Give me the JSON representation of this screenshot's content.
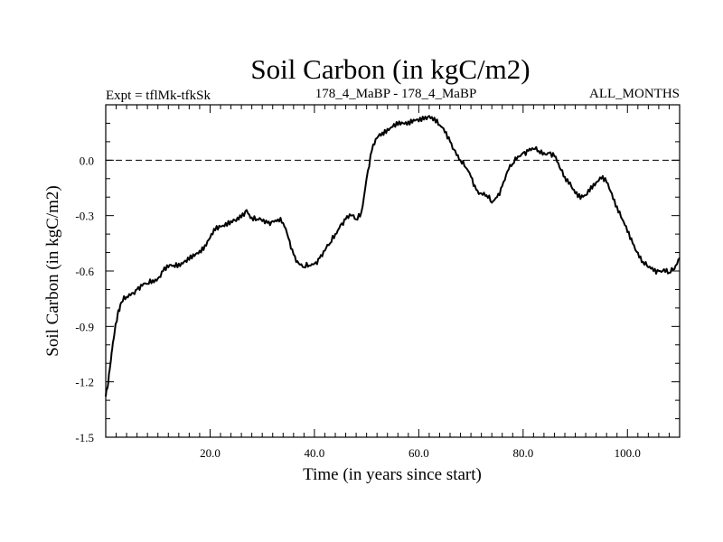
{
  "chart_data": {
    "type": "line",
    "title": "Soil Carbon (in kgC/m2)",
    "subtitle_left": "Expt = tflMk-tfkSk",
    "subtitle_center": "178_4_MaBP - 178_4_MaBP",
    "subtitle_right": "ALL_MONTHS",
    "xlabel": "Time (in years since start)",
    "ylabel": "Soil Carbon (in kgC/m2)",
    "xlim": [
      0,
      110
    ],
    "ylim": [
      -1.5,
      0.3
    ],
    "x_ticks": [
      20,
      40,
      60,
      80,
      100
    ],
    "x_tick_labels": [
      "20.0",
      "40.0",
      "60.0",
      "80.0",
      "100.0"
    ],
    "y_ticks": [
      -1.5,
      -1.2,
      -0.9,
      -0.6,
      -0.3,
      0.0
    ],
    "y_tick_labels": [
      "-1.5",
      "-1.2",
      "-0.9",
      "-0.6",
      "-0.3",
      "0.0"
    ],
    "reference_line": {
      "y": 0.0,
      "style": "dashed"
    },
    "series": [
      {
        "name": "Soil Carbon",
        "color": "#000000",
        "x": [
          0,
          0.5,
          1,
          1.5,
          2,
          2.5,
          3,
          4,
          5,
          6,
          7,
          8,
          9,
          10,
          11,
          12,
          13,
          14,
          15,
          16,
          17,
          18,
          19,
          20,
          21,
          22,
          23,
          24,
          25,
          26,
          27,
          28,
          29,
          30,
          31,
          32,
          33,
          34,
          35,
          36,
          37,
          38,
          39,
          40,
          41,
          42,
          43,
          44,
          45,
          46,
          47,
          48,
          49,
          50,
          51,
          52,
          53,
          54,
          55,
          56,
          57,
          58,
          59,
          60,
          61,
          62,
          63,
          64,
          65,
          66,
          67,
          68,
          69,
          70,
          71,
          72,
          73,
          74,
          75,
          76,
          77,
          78,
          79,
          80,
          81,
          82,
          83,
          84,
          85,
          86,
          87,
          88,
          89,
          90,
          91,
          92,
          93,
          94,
          95,
          96,
          97,
          98,
          99,
          100,
          101,
          102,
          103,
          104,
          105,
          106,
          107,
          108,
          109,
          110
        ],
        "values": [
          -1.28,
          -1.2,
          -1.08,
          -0.97,
          -0.88,
          -0.81,
          -0.77,
          -0.74,
          -0.72,
          -0.7,
          -0.68,
          -0.67,
          -0.65,
          -0.64,
          -0.6,
          -0.58,
          -0.57,
          -0.56,
          -0.55,
          -0.54,
          -0.52,
          -0.49,
          -0.46,
          -0.42,
          -0.38,
          -0.36,
          -0.34,
          -0.33,
          -0.33,
          -0.31,
          -0.27,
          -0.31,
          -0.32,
          -0.33,
          -0.34,
          -0.33,
          -0.32,
          -0.34,
          -0.42,
          -0.51,
          -0.56,
          -0.58,
          -0.57,
          -0.56,
          -0.53,
          -0.49,
          -0.45,
          -0.4,
          -0.35,
          -0.32,
          -0.3,
          -0.32,
          -0.28,
          -0.1,
          0.05,
          0.12,
          0.15,
          0.17,
          0.18,
          0.19,
          0.2,
          0.21,
          0.22,
          0.21,
          0.22,
          0.24,
          0.23,
          0.19,
          0.15,
          0.1,
          0.05,
          0.0,
          -0.04,
          -0.09,
          -0.16,
          -0.18,
          -0.19,
          -0.23,
          -0.2,
          -0.14,
          -0.06,
          -0.02,
          0.02,
          0.04,
          0.05,
          0.06,
          0.05,
          0.04,
          0.04,
          0.02,
          -0.04,
          -0.09,
          -0.12,
          -0.18,
          -0.21,
          -0.19,
          -0.14,
          -0.12,
          -0.1,
          -0.12,
          -0.18,
          -0.25,
          -0.32,
          -0.39,
          -0.45,
          -0.5,
          -0.55,
          -0.58,
          -0.6,
          -0.6,
          -0.59,
          -0.61,
          -0.59,
          -0.53
        ]
      }
    ]
  }
}
